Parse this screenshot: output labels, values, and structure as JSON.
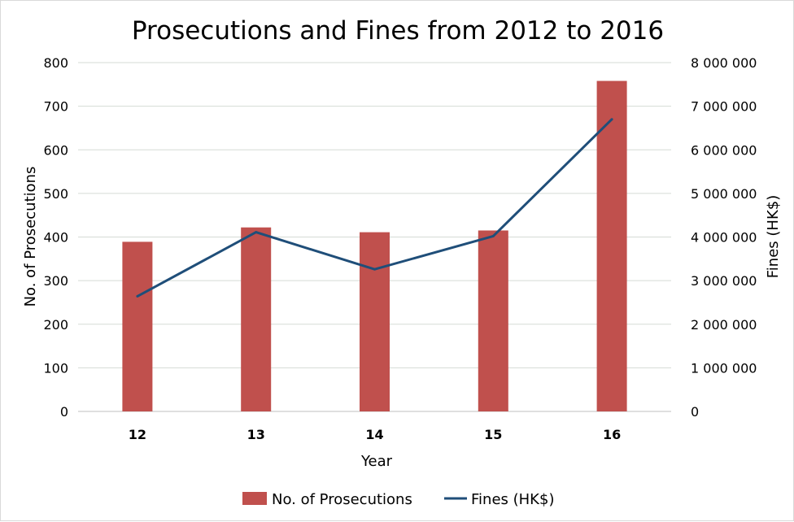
{
  "chart_data": {
    "type": "bar+line",
    "title": "Prosecutions and Fines from 2012 to 2016",
    "xlabel": "Year",
    "ylabel": "No. of Prosecutions",
    "y2label": "Fines (HK$)",
    "categories": [
      "12",
      "13",
      "14",
      "15",
      "16"
    ],
    "ylim": [
      0,
      800
    ],
    "y2lim": [
      0,
      8000000
    ],
    "yticks": [
      "0",
      "100",
      "200",
      "300",
      "400",
      "500",
      "600",
      "700",
      "800"
    ],
    "y2ticks": [
      "0",
      "1 000 000",
      "2 000 000",
      "3 000 000",
      "4 000 000",
      "5 000 000",
      "6 000 000",
      "7 000 000",
      "8 000 000"
    ],
    "grid": true,
    "legend": "bottom",
    "series": [
      {
        "name": "No. of Prosecutions",
        "type": "bar",
        "axis": "left",
        "color": "#c0504d",
        "values": [
          389,
          422,
          411,
          415,
          758
        ]
      },
      {
        "name": "Fines (HK$)",
        "type": "line",
        "axis": "right",
        "color": "#1f4e79",
        "values": [
          2640000,
          4110000,
          3260000,
          4020000,
          6700000
        ]
      }
    ]
  }
}
